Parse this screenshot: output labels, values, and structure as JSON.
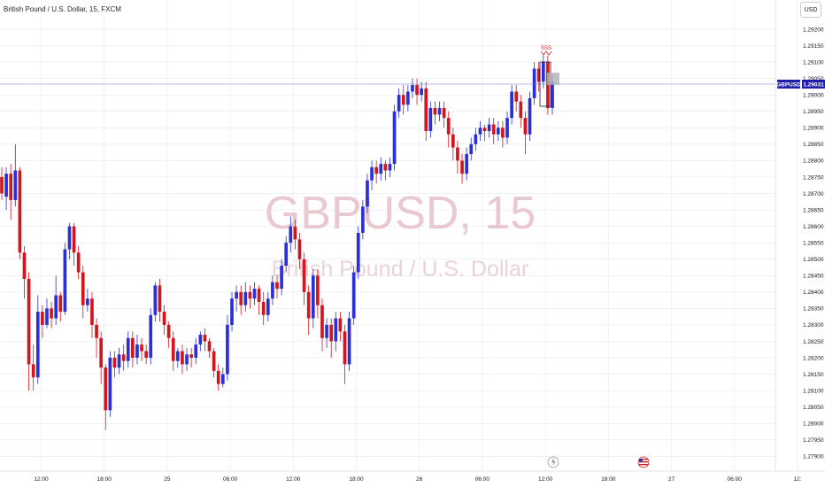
{
  "header": {
    "title": "British Pound / U.S. Dollar, 15, FXCM",
    "currency": "USD"
  },
  "watermark": {
    "symbol": "GBPUSD, 15",
    "description": "British Pound / U.S. Dollar"
  },
  "price_badge": {
    "symbol": "GBPUSD",
    "price": "1.29031"
  },
  "marker_label": "SSS",
  "colors": {
    "up": "#2b2fd6",
    "down": "#d0161e",
    "badge_bg": "#1e1ea8",
    "price_line": "#6b78c8",
    "grid": "#e3e5ec"
  },
  "icons": [
    "lightning-icon",
    "us-flag-icon"
  ],
  "chart_data": {
    "type": "candlestick",
    "y_ticks": [
      "1.29200",
      "1.29150",
      "1.29100",
      "1.29050",
      "1.29000",
      "1.28950",
      "1.28900",
      "1.28850",
      "1.28800",
      "1.28750",
      "1.28700",
      "1.28650",
      "1.28600",
      "1.28550",
      "1.28500",
      "1.28450",
      "1.28400",
      "1.28350",
      "1.28300",
      "1.28250",
      "1.28200",
      "1.28150",
      "1.28100",
      "1.28050",
      "1.28000",
      "1.27950",
      "1.27900"
    ],
    "x_ticks": [
      "12:00",
      "18:00",
      "25",
      "06:00",
      "12:00",
      "18:00",
      "26",
      "06:00",
      "12:00",
      "18:00",
      "27",
      "06:00",
      "12:"
    ],
    "candles": [
      [
        1.2875,
        1.287,
        1.2868,
        1.2878
      ],
      [
        1.2869,
        1.2876,
        1.2865,
        1.2878
      ],
      [
        1.2876,
        1.2868,
        1.2862,
        1.2879
      ],
      [
        1.2868,
        1.2877,
        1.2866,
        1.2885
      ],
      [
        1.2877,
        1.2852,
        1.285,
        1.2878
      ],
      [
        1.2852,
        1.2844,
        1.2838,
        1.2854
      ],
      [
        1.2844,
        1.2818,
        1.281,
        1.2846
      ],
      [
        1.2818,
        1.2814,
        1.281,
        1.2824
      ],
      [
        1.2814,
        1.2834,
        1.2812,
        1.2839
      ],
      [
        1.2834,
        1.283,
        1.2826,
        1.2836
      ],
      [
        1.283,
        1.2835,
        1.2829,
        1.2838
      ],
      [
        1.2835,
        1.2832,
        1.2829,
        1.2837
      ],
      [
        1.2832,
        1.2839,
        1.283,
        1.2845
      ],
      [
        1.2839,
        1.2834,
        1.2831,
        1.284
      ],
      [
        1.2834,
        1.2853,
        1.2833,
        1.2855
      ],
      [
        1.2853,
        1.286,
        1.285,
        1.2861
      ],
      [
        1.286,
        1.2852,
        1.2848,
        1.2861
      ],
      [
        1.2852,
        1.2846,
        1.2844,
        1.2854
      ],
      [
        1.2846,
        1.2836,
        1.2832,
        1.2848
      ],
      [
        1.2836,
        1.2838,
        1.2834,
        1.2841
      ],
      [
        1.2838,
        1.283,
        1.2826,
        1.284
      ],
      [
        1.283,
        1.2826,
        1.282,
        1.2832
      ],
      [
        1.2826,
        1.2817,
        1.2812,
        1.2828
      ],
      [
        1.2817,
        1.2804,
        1.2798,
        1.2818
      ],
      [
        1.2804,
        1.282,
        1.2802,
        1.2822
      ],
      [
        1.282,
        1.2817,
        1.2814,
        1.2822
      ],
      [
        1.2817,
        1.2821,
        1.2815,
        1.2823
      ],
      [
        1.2821,
        1.2819,
        1.2816,
        1.2824
      ],
      [
        1.2819,
        1.2826,
        1.2817,
        1.2828
      ],
      [
        1.2826,
        1.282,
        1.2817,
        1.2828
      ],
      [
        1.282,
        1.2824,
        1.2818,
        1.2827
      ],
      [
        1.2824,
        1.2822,
        1.2819,
        1.2826
      ],
      [
        1.2822,
        1.282,
        1.2818,
        1.2824
      ],
      [
        1.282,
        1.2833,
        1.2818,
        1.2835
      ],
      [
        1.2833,
        1.2842,
        1.2831,
        1.2843
      ],
      [
        1.2842,
        1.2834,
        1.2831,
        1.2844
      ],
      [
        1.2834,
        1.283,
        1.2827,
        1.2836
      ],
      [
        1.283,
        1.2826,
        1.2823,
        1.2831
      ],
      [
        1.2826,
        1.2819,
        1.2816,
        1.2828
      ],
      [
        1.2819,
        1.2822,
        1.2817,
        1.2823
      ],
      [
        1.2822,
        1.2818,
        1.2815,
        1.2824
      ],
      [
        1.2818,
        1.2821,
        1.2816,
        1.2823
      ],
      [
        1.2821,
        1.282,
        1.2817,
        1.2823
      ],
      [
        1.282,
        1.2824,
        1.2818,
        1.2826
      ],
      [
        1.2824,
        1.2827,
        1.2822,
        1.2828
      ],
      [
        1.2827,
        1.2825,
        1.2822,
        1.2829
      ],
      [
        1.2825,
        1.2822,
        1.282,
        1.2826
      ],
      [
        1.2822,
        1.2816,
        1.2814,
        1.2823
      ],
      [
        1.2816,
        1.2812,
        1.281,
        1.2818
      ],
      [
        1.2812,
        1.2815,
        1.2811,
        1.2817
      ],
      [
        1.2815,
        1.283,
        1.2813,
        1.2833
      ],
      [
        1.283,
        1.2838,
        1.2828,
        1.284
      ],
      [
        1.2838,
        1.284,
        1.2834,
        1.2842
      ],
      [
        1.284,
        1.2836,
        1.2833,
        1.2842
      ],
      [
        1.2836,
        1.284,
        1.2834,
        1.2843
      ],
      [
        1.284,
        1.2838,
        1.2835,
        1.2842
      ],
      [
        1.2838,
        1.2841,
        1.2836,
        1.2843
      ],
      [
        1.2841,
        1.2837,
        1.2833,
        1.2842
      ],
      [
        1.2837,
        1.2833,
        1.283,
        1.284
      ],
      [
        1.2833,
        1.2838,
        1.2831,
        1.284
      ],
      [
        1.2838,
        1.2843,
        1.2836,
        1.2845
      ],
      [
        1.2843,
        1.2841,
        1.2838,
        1.2845
      ],
      [
        1.2841,
        1.2848,
        1.2839,
        1.285
      ],
      [
        1.2848,
        1.2855,
        1.2846,
        1.2857
      ],
      [
        1.2855,
        1.286,
        1.2852,
        1.2863
      ],
      [
        1.286,
        1.2856,
        1.2853,
        1.2862
      ],
      [
        1.2856,
        1.285,
        1.2847,
        1.2858
      ],
      [
        1.285,
        1.284,
        1.2836,
        1.2852
      ],
      [
        1.284,
        1.2832,
        1.2827,
        1.2842
      ],
      [
        1.2832,
        1.2845,
        1.2829,
        1.2847
      ],
      [
        1.2845,
        1.2836,
        1.2832,
        1.2847
      ],
      [
        1.2836,
        1.2826,
        1.2822,
        1.2838
      ],
      [
        1.2826,
        1.283,
        1.2823,
        1.2832
      ],
      [
        1.283,
        1.2825,
        1.282,
        1.2832
      ],
      [
        1.2825,
        1.2832,
        1.2822,
        1.2834
      ],
      [
        1.2832,
        1.2828,
        1.2825,
        1.2834
      ],
      [
        1.2828,
        1.2818,
        1.2812,
        1.283
      ],
      [
        1.2818,
        1.2832,
        1.2816,
        1.2834
      ],
      [
        1.2832,
        1.2846,
        1.283,
        1.2848
      ],
      [
        1.2846,
        1.2858,
        1.2844,
        1.286
      ],
      [
        1.2858,
        1.2866,
        1.2856,
        1.2868
      ],
      [
        1.2866,
        1.2874,
        1.2864,
        1.2876
      ],
      [
        1.2874,
        1.2878,
        1.2871,
        1.288
      ],
      [
        1.2878,
        1.2876,
        1.2873,
        1.288
      ],
      [
        1.2876,
        1.2879,
        1.2874,
        1.2881
      ],
      [
        1.2879,
        1.2877,
        1.2874,
        1.288
      ],
      [
        1.2877,
        1.2879,
        1.2875,
        1.2881
      ],
      [
        1.2879,
        1.2895,
        1.2877,
        1.2897
      ],
      [
        1.2895,
        1.29,
        1.2893,
        1.2902
      ],
      [
        1.29,
        1.2897,
        1.2894,
        1.2903
      ],
      [
        1.2897,
        1.2901,
        1.2895,
        1.2903
      ],
      [
        1.2901,
        1.2903,
        1.2899,
        1.2905
      ],
      [
        1.2903,
        1.29,
        1.2897,
        1.2905
      ],
      [
        1.29,
        1.2902,
        1.2898,
        1.2904
      ],
      [
        1.2902,
        1.2889,
        1.2886,
        1.2904
      ],
      [
        1.2889,
        1.2896,
        1.2887,
        1.2898
      ],
      [
        1.2896,
        1.2894,
        1.2891,
        1.2898
      ],
      [
        1.2894,
        1.2896,
        1.2892,
        1.2898
      ],
      [
        1.2896,
        1.2893,
        1.289,
        1.2898
      ],
      [
        1.2893,
        1.2888,
        1.2884,
        1.2895
      ],
      [
        1.2888,
        1.2884,
        1.288,
        1.289
      ],
      [
        1.2884,
        1.288,
        1.2876,
        1.2886
      ],
      [
        1.288,
        1.2876,
        1.2873,
        1.2882
      ],
      [
        1.2876,
        1.2882,
        1.2874,
        1.2884
      ],
      [
        1.2882,
        1.2885,
        1.288,
        1.2887
      ],
      [
        1.2885,
        1.2888,
        1.2883,
        1.289
      ],
      [
        1.2888,
        1.289,
        1.2886,
        1.2892
      ],
      [
        1.289,
        1.2889,
        1.2886,
        1.2891
      ],
      [
        1.2889,
        1.2891,
        1.2887,
        1.2893
      ],
      [
        1.2891,
        1.2888,
        1.2885,
        1.2893
      ],
      [
        1.2888,
        1.289,
        1.2886,
        1.2892
      ],
      [
        1.289,
        1.2887,
        1.2884,
        1.2892
      ],
      [
        1.2887,
        1.2893,
        1.2885,
        1.2895
      ],
      [
        1.2893,
        1.2901,
        1.2891,
        1.2903
      ],
      [
        1.2901,
        1.2898,
        1.2895,
        1.2903
      ],
      [
        1.2898,
        1.2893,
        1.289,
        1.29
      ],
      [
        1.2893,
        1.2888,
        1.2882,
        1.2895
      ],
      [
        1.2888,
        1.2899,
        1.2886,
        1.2901
      ],
      [
        1.2899,
        1.2908,
        1.2897,
        1.291
      ],
      [
        1.2908,
        1.2904,
        1.2901,
        1.291
      ],
      [
        1.2904,
        1.291,
        1.2902,
        1.2912
      ],
      [
        1.291,
        1.2896,
        1.2894,
        1.2912
      ],
      [
        1.2896,
        1.2904,
        1.2894,
        1.2906
      ]
    ]
  }
}
